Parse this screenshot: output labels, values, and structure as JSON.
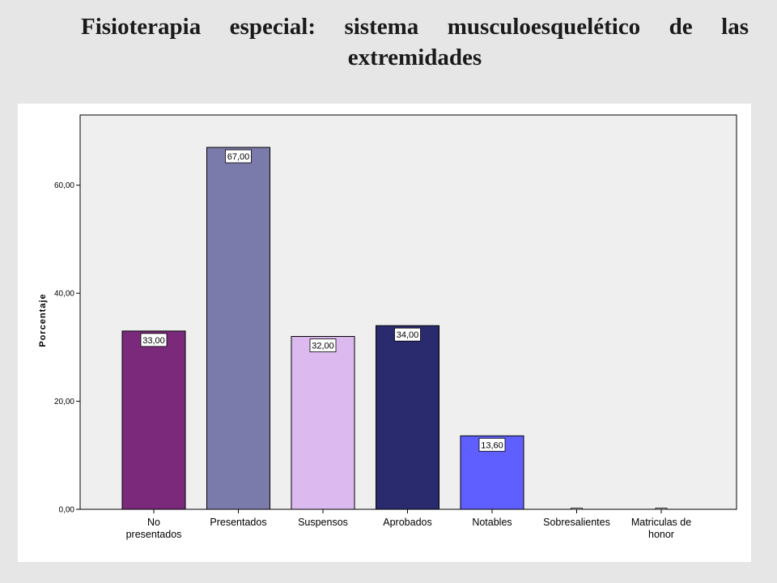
{
  "title": "Fisioterapia especial: sistema musculoesquelético de las extremidades",
  "chart_data": {
    "type": "bar",
    "ylabel": "Porcentaje",
    "xlabel": "",
    "ylim": [
      0,
      73
    ],
    "yticks": [
      0,
      20,
      40,
      60
    ],
    "ytick_labels": [
      "0,00",
      "20,00",
      "40,00",
      "60,00"
    ],
    "grid": false,
    "categories": [
      [
        "No",
        "presentados"
      ],
      [
        "Presentados"
      ],
      [
        "Suspensos"
      ],
      [
        "Aprobados"
      ],
      [
        "Notables"
      ],
      [
        "Sobresalientes"
      ],
      [
        "Matriculas de",
        "honor"
      ]
    ],
    "values": [
      33.0,
      67.0,
      32.0,
      34.0,
      13.6,
      0,
      0
    ],
    "data_labels": [
      "33,00",
      "67,00",
      "32,00",
      "34,00",
      "13,60",
      "",
      ""
    ],
    "colors": [
      "#7b2a7b",
      "#7b7bab",
      "#dcbaf0",
      "#2a2a6e",
      "#5f5fff",
      "#e8e8e8",
      "#e8e8e8"
    ],
    "plot_background": "#efefef"
  }
}
